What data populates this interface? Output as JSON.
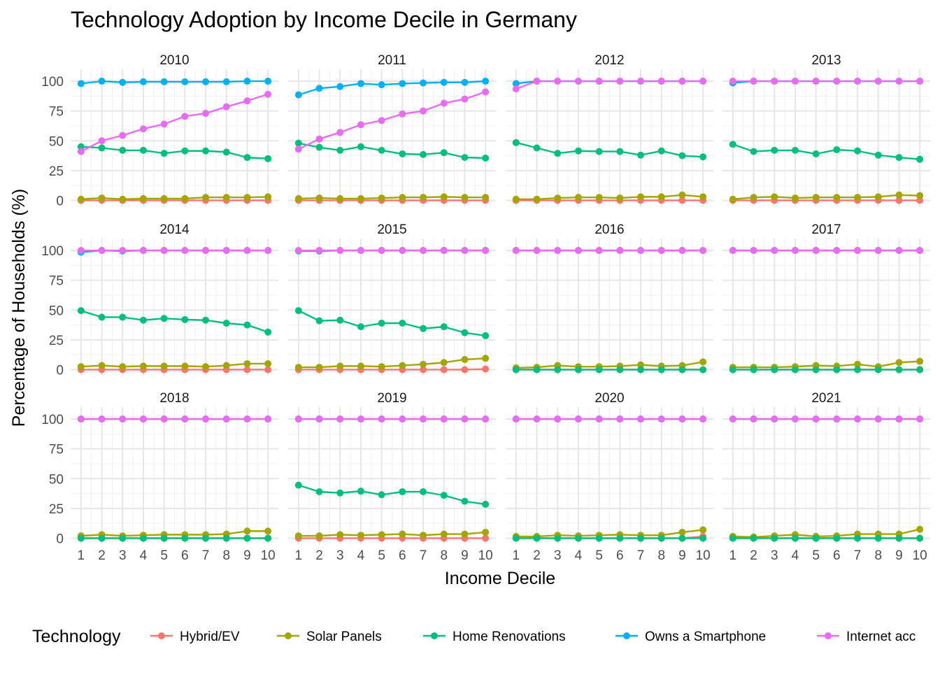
{
  "chart_data": {
    "type": "line",
    "title": "Technology Adoption by Income Decile in Germany",
    "xlabel": "Income Decile",
    "ylabel": "Percentage of Households (%)",
    "ylim": [
      0,
      100
    ],
    "x_ticks": [
      "1",
      "2",
      "3",
      "4",
      "5",
      "6",
      "7",
      "8",
      "9",
      "10"
    ],
    "y_ticks": [
      "0",
      "25",
      "50",
      "75",
      "100"
    ],
    "grid": true,
    "legend": {
      "title": "Technology",
      "position": "bottom",
      "entries": [
        "Hybrid/EV",
        "Solar Panels",
        "Home Renovations",
        "Owns a Smartphone",
        "Internet acc"
      ]
    },
    "series_styles": [
      {
        "name": "Hybrid/EV",
        "color": "#F8766D"
      },
      {
        "name": "Solar Panels",
        "color": "#A3A500"
      },
      {
        "name": "Home Renovations",
        "color": "#00BF7D"
      },
      {
        "name": "Owns a Smartphone",
        "color": "#00B0F6"
      },
      {
        "name": "Internet acc",
        "color": "#E76BF3"
      }
    ],
    "x": [
      1,
      2,
      3,
      4,
      5,
      6,
      7,
      8,
      9,
      10
    ],
    "facets": [
      {
        "label": "2010",
        "series": [
          {
            "name": "Hybrid/EV",
            "values": [
              0,
              0,
              0,
              0,
              0,
              0,
              0,
              0,
              0,
              0
            ]
          },
          {
            "name": "Solar Panels",
            "values": [
              1,
              2,
              1,
              1.5,
              1.5,
              1.5,
              2.5,
              2.5,
              2.5,
              3
            ]
          },
          {
            "name": "Home Renovations",
            "values": [
              45,
              44,
              42,
              42,
              39.5,
              41.5,
              41.5,
              40.5,
              36,
              35
            ]
          },
          {
            "name": "Owns a Smartphone",
            "values": [
              98,
              100,
              99,
              99.5,
              99.5,
              99.5,
              99.5,
              99.5,
              100,
              100
            ]
          },
          {
            "name": "Internet acc",
            "values": [
              41,
              50,
              54.5,
              60,
              64,
              70.5,
              73,
              78.5,
              83.5,
              89
            ]
          }
        ]
      },
      {
        "label": "2011",
        "series": [
          {
            "name": "Hybrid/EV",
            "values": [
              0,
              0,
              0,
              0,
              0,
              0,
              0,
              0,
              0,
              0
            ]
          },
          {
            "name": "Solar Panels",
            "values": [
              1.5,
              2,
              1.5,
              1.5,
              2,
              2.5,
              2.5,
              3,
              2.5,
              2.5
            ]
          },
          {
            "name": "Home Renovations",
            "values": [
              48,
              44.5,
              42,
              45,
              42,
              39,
              38.5,
              40,
              36,
              35.5
            ]
          },
          {
            "name": "Owns a Smartphone",
            "values": [
              88.5,
              94,
              95.5,
              98,
              97,
              98,
              98.5,
              99,
              99,
              100
            ]
          },
          {
            "name": "Internet acc",
            "values": [
              43,
              51.5,
              57,
              63.5,
              67,
              72.5,
              75,
              81.5,
              85,
              91
            ]
          }
        ]
      },
      {
        "label": "2012",
        "series": [
          {
            "name": "Hybrid/EV",
            "values": [
              0,
              0,
              0,
              0,
              0,
              0,
              0,
              0,
              0,
              0
            ]
          },
          {
            "name": "Solar Panels",
            "values": [
              1,
              1,
              2,
              2.5,
              2.5,
              2,
              3,
              3,
              4.5,
              3
            ]
          },
          {
            "name": "Home Renovations",
            "values": [
              48.5,
              44,
              39.5,
              41.5,
              41,
              41,
              38,
              41.5,
              37.5,
              36.5
            ]
          },
          {
            "name": "Owns a Smartphone",
            "values": [
              98,
              100,
              100,
              100,
              100,
              100,
              100,
              100,
              100,
              100
            ]
          },
          {
            "name": "Internet acc",
            "values": [
              93.5,
              100,
              100,
              100,
              100,
              100,
              100,
              100,
              100,
              100
            ]
          }
        ]
      },
      {
        "label": "2013",
        "series": [
          {
            "name": "Hybrid/EV",
            "values": [
              0,
              0,
              0,
              0,
              0,
              0,
              0,
              0,
              0,
              0
            ]
          },
          {
            "name": "Solar Panels",
            "values": [
              1,
              2.5,
              3,
              2,
              2.5,
              2.5,
              2.5,
              3,
              4.5,
              4
            ]
          },
          {
            "name": "Home Renovations",
            "values": [
              47,
              41,
              42,
              42,
              39,
              42.5,
              41.5,
              38,
              36,
              34.5
            ]
          },
          {
            "name": "Owns a Smartphone",
            "values": [
              98.5,
              100,
              100,
              100,
              100,
              100,
              100,
              100,
              100,
              100
            ]
          },
          {
            "name": "Internet acc",
            "values": [
              100,
              100,
              100,
              100,
              100,
              100,
              100,
              100,
              100,
              100
            ]
          }
        ]
      },
      {
        "label": "2014",
        "series": [
          {
            "name": "Hybrid/EV",
            "values": [
              0,
              0,
              0,
              0,
              0,
              0,
              0,
              0,
              0,
              0
            ]
          },
          {
            "name": "Solar Panels",
            "values": [
              2.5,
              3.5,
              2.5,
              3,
              3,
              3,
              2.5,
              3.5,
              5,
              5
            ]
          },
          {
            "name": "Home Renovations",
            "values": [
              49.5,
              44,
              44,
              41.5,
              43,
              42,
              41.5,
              39,
              37.5,
              31.5
            ]
          },
          {
            "name": "Owns a Smartphone",
            "values": [
              98.5,
              100,
              99.5,
              100,
              100,
              100,
              100,
              100,
              100,
              100
            ]
          },
          {
            "name": "Internet acc",
            "values": [
              100,
              100,
              100,
              100,
              100,
              100,
              100,
              100,
              100,
              100
            ]
          }
        ]
      },
      {
        "label": "2015",
        "series": [
          {
            "name": "Hybrid/EV",
            "values": [
              0,
              0,
              0,
              0,
              0,
              0,
              0,
              0,
              0,
              0.5
            ]
          },
          {
            "name": "Solar Panels",
            "values": [
              2,
              2,
              3,
              3,
              2.5,
              3.5,
              4.5,
              6,
              8.5,
              9.5
            ]
          },
          {
            "name": "Home Renovations",
            "values": [
              49.5,
              41,
              41.5,
              36,
              39,
              39,
              34.5,
              36,
              31,
              28.5
            ]
          },
          {
            "name": "Owns a Smartphone",
            "values": [
              99.5,
              99.5,
              100,
              100,
              100,
              100,
              100,
              100,
              100,
              100
            ]
          },
          {
            "name": "Internet acc",
            "values": [
              100,
              100,
              100,
              100,
              100,
              100,
              100,
              100,
              100,
              100
            ]
          }
        ]
      },
      {
        "label": "2016",
        "series": [
          {
            "name": "Hybrid/EV",
            "values": [
              0,
              0,
              0,
              0,
              0,
              0,
              0,
              0,
              0,
              0
            ]
          },
          {
            "name": "Solar Panels",
            "values": [
              1.5,
              2,
              3.5,
              2.5,
              2.5,
              3,
              4,
              3,
              3.5,
              6.5
            ]
          },
          {
            "name": "Home Renovations",
            "values": [
              0,
              0,
              0,
              0,
              0,
              0,
              0,
              0,
              0,
              0
            ]
          },
          {
            "name": "Owns a Smartphone",
            "values": [
              100,
              100,
              100,
              100,
              100,
              100,
              100,
              100,
              100,
              100
            ]
          },
          {
            "name": "Internet acc",
            "values": [
              100,
              100,
              100,
              100,
              100,
              100,
              100,
              100,
              100,
              100
            ]
          }
        ]
      },
      {
        "label": "2017",
        "series": [
          {
            "name": "Hybrid/EV",
            "values": [
              0,
              0,
              0,
              0,
              0,
              0,
              0,
              0,
              0,
              0
            ]
          },
          {
            "name": "Solar Panels",
            "values": [
              2,
              2,
              2,
              2.5,
              3.5,
              3,
              4.5,
              2.5,
              6,
              7
            ]
          },
          {
            "name": "Home Renovations",
            "values": [
              0,
              0,
              0,
              0,
              0,
              0,
              0,
              0,
              0,
              0
            ]
          },
          {
            "name": "Owns a Smartphone",
            "values": [
              100,
              100,
              100,
              100,
              100,
              100,
              100,
              100,
              100,
              100
            ]
          },
          {
            "name": "Internet acc",
            "values": [
              100,
              100,
              100,
              100,
              100,
              100,
              100,
              100,
              100,
              100
            ]
          }
        ]
      },
      {
        "label": "2018",
        "series": [
          {
            "name": "Hybrid/EV",
            "values": [
              0,
              0,
              0,
              0,
              0,
              0,
              0,
              0,
              0,
              0
            ]
          },
          {
            "name": "Solar Panels",
            "values": [
              2,
              3,
              2,
              2.5,
              3,
              3,
              3,
              3.5,
              6,
              6
            ]
          },
          {
            "name": "Home Renovations",
            "values": [
              0,
              0,
              0,
              0,
              0,
              0,
              0,
              0,
              0,
              0
            ]
          },
          {
            "name": "Owns a Smartphone",
            "values": [
              100,
              100,
              100,
              100,
              100,
              100,
              100,
              100,
              100,
              100
            ]
          },
          {
            "name": "Internet acc",
            "values": [
              100,
              100,
              100,
              100,
              100,
              100,
              100,
              100,
              100,
              100
            ]
          }
        ]
      },
      {
        "label": "2019",
        "series": [
          {
            "name": "Hybrid/EV",
            "values": [
              0,
              0,
              0,
              0,
              0,
              0,
              0,
              0,
              0,
              0
            ]
          },
          {
            "name": "Solar Panels",
            "values": [
              2,
              2,
              3,
              2.5,
              3,
              3.5,
              2.5,
              3.5,
              3.5,
              5
            ]
          },
          {
            "name": "Home Renovations",
            "values": [
              44.5,
              39,
              38,
              39.5,
              36.5,
              39,
              39,
              36,
              31,
              28.5
            ]
          },
          {
            "name": "Owns a Smartphone",
            "values": [
              100,
              100,
              100,
              100,
              100,
              100,
              100,
              100,
              100,
              100
            ]
          },
          {
            "name": "Internet acc",
            "values": [
              100,
              100,
              100,
              100,
              100,
              100,
              100,
              100,
              100,
              100
            ]
          }
        ]
      },
      {
        "label": "2020",
        "series": [
          {
            "name": "Hybrid/EV",
            "values": [
              0,
              0,
              0,
              0,
              0,
              0,
              0,
              0,
              0,
              1.5
            ]
          },
          {
            "name": "Solar Panels",
            "values": [
              1.5,
              1.5,
              2.5,
              2,
              2.5,
              3,
              2.5,
              2.5,
              5,
              7
            ]
          },
          {
            "name": "Home Renovations",
            "values": [
              0,
              0,
              0,
              0,
              0,
              0,
              0,
              0,
              0,
              0
            ]
          },
          {
            "name": "Owns a Smartphone",
            "values": [
              100,
              100,
              100,
              100,
              100,
              100,
              100,
              100,
              100,
              100
            ]
          },
          {
            "name": "Internet acc",
            "values": [
              100,
              100,
              100,
              100,
              100,
              100,
              100,
              100,
              100,
              100
            ]
          }
        ]
      },
      {
        "label": "2021",
        "series": [
          {
            "name": "Hybrid/EV",
            "values": [
              0,
              0,
              0,
              0,
              0,
              0,
              0,
              0,
              0,
              0
            ]
          },
          {
            "name": "Solar Panels",
            "values": [
              1.5,
              1,
              2,
              3,
              1.5,
              2,
              3.5,
              3.5,
              3.5,
              7.5
            ]
          },
          {
            "name": "Home Renovations",
            "values": [
              0,
              0,
              0,
              0,
              0,
              0,
              0,
              0,
              0,
              0
            ]
          },
          {
            "name": "Owns a Smartphone",
            "values": [
              100,
              100,
              100,
              100,
              100,
              100,
              100,
              100,
              100,
              100
            ]
          },
          {
            "name": "Internet acc",
            "values": [
              100,
              100,
              100,
              100,
              100,
              100,
              100,
              100,
              100,
              100
            ]
          }
        ]
      }
    ]
  }
}
